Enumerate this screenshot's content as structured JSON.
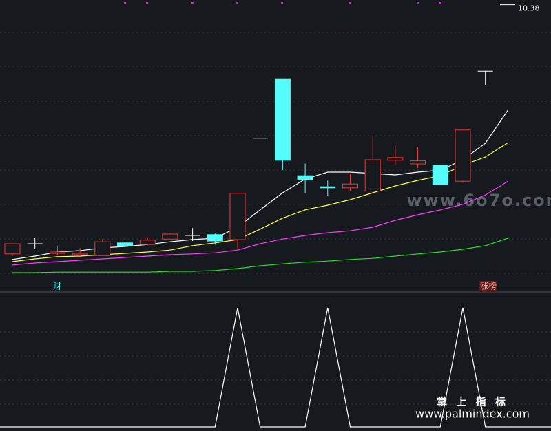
{
  "chart_data": [
    {
      "type": "candlestick",
      "categories": [
        null,
        null,
        null,
        null,
        null,
        null,
        null,
        null,
        null,
        null,
        null,
        null,
        null,
        null,
        null,
        null,
        null,
        null,
        null,
        null,
        null,
        null,
        null
      ],
      "open": [
        5.89,
        6.075,
        5.9,
        5.875,
        5.86,
        6.09,
        6.06,
        6.16,
        6.225,
        6.24,
        6.15,
        7.99,
        9.06,
        7.31,
        7.11,
        7.09,
        7.03,
        7.59,
        7.525,
        7.5,
        7.21,
        9.21,
        null
      ],
      "high": [
        6.075,
        6.19,
        6.04,
        6.0,
        6.16,
        6.14,
        6.19,
        6.275,
        6.36,
        6.26,
        6.99,
        7.99,
        9.06,
        7.53,
        7.22,
        7.35,
        8.04,
        7.86,
        7.83,
        7.5,
        8.14,
        9.21,
        null
      ],
      "low": [
        5.85,
        5.975,
        5.875,
        5.85,
        5.86,
        6.0,
        6.04,
        6.15,
        6.125,
        6.06,
        5.95,
        7.99,
        7.41,
        7.0,
        6.95,
        7.03,
        7.03,
        7.5,
        7.45,
        7.15,
        7.18,
        8.96,
        null
      ],
      "close": [
        6.075,
        6.075,
        5.925,
        5.9,
        6.11,
        6.04,
        6.14,
        6.25,
        6.225,
        6.125,
        6.99,
        7.99,
        7.59,
        7.24,
        7.09,
        7.16,
        7.6,
        7.64,
        7.58,
        7.15,
        8.14,
        9.21,
        null
      ],
      "rise_color": "#ff3232",
      "fall_color": "#54fcfc",
      "flat_color": "#ffffff",
      "series": [
        {
          "name": "MA5",
          "color": "#ffffff",
          "values": [
            5.79,
            5.85,
            5.925,
            5.95,
            6.0,
            6.025,
            6.06,
            6.11,
            6.15,
            6.175,
            6.375,
            6.69,
            7.0,
            7.25,
            7.375,
            7.375,
            7.35,
            7.325,
            7.375,
            7.41,
            7.6,
            7.9,
            8.5
          ]
        },
        {
          "name": "MA10",
          "color": "#ffff3c",
          "values": [
            5.75,
            5.8,
            5.84,
            5.85,
            5.875,
            5.9,
            5.925,
            5.96,
            6.04,
            6.09,
            6.15,
            6.34,
            6.54,
            6.69,
            6.775,
            6.875,
            7.0,
            7.125,
            7.225,
            7.31,
            7.5,
            7.65,
            7.91
          ]
        },
        {
          "name": "MA20",
          "color": "#ff3cff",
          "values": [
            5.69,
            5.725,
            5.75,
            5.775,
            5.8,
            5.825,
            5.85,
            5.875,
            5.89,
            5.91,
            5.96,
            6.075,
            6.16,
            6.225,
            6.275,
            6.31,
            6.375,
            6.5,
            6.6,
            6.69,
            6.79,
            6.96,
            7.21
          ]
        },
        {
          "name": "MA60",
          "color": "#1ee61e",
          "values": [
            5.55,
            5.55,
            5.56,
            5.56,
            5.56,
            5.56,
            5.56,
            5.575,
            5.575,
            5.59,
            5.625,
            5.675,
            5.71,
            5.74,
            5.76,
            5.79,
            5.81,
            5.85,
            5.89,
            5.925,
            5.975,
            6.04,
            6.175
          ]
        }
      ],
      "ylim": [
        5.3,
        10.5
      ],
      "high_marker": 10.38,
      "tag_left": "财",
      "tag_right": "涨榜",
      "watermark": "www.6o7o.com"
    },
    {
      "type": "line",
      "series": [
        {
          "name": "signal",
          "color": "#ffffff",
          "values": [
            0,
            0,
            0,
            0,
            0,
            0,
            0,
            0,
            0,
            0,
            1,
            0,
            0,
            0,
            1,
            0,
            0,
            0,
            0,
            0,
            1,
            0,
            0
          ]
        }
      ],
      "ylim": [
        0,
        1
      ],
      "watermark_title": "掌 上 指 标",
      "watermark_url": "www.palmindex.com"
    }
  ]
}
